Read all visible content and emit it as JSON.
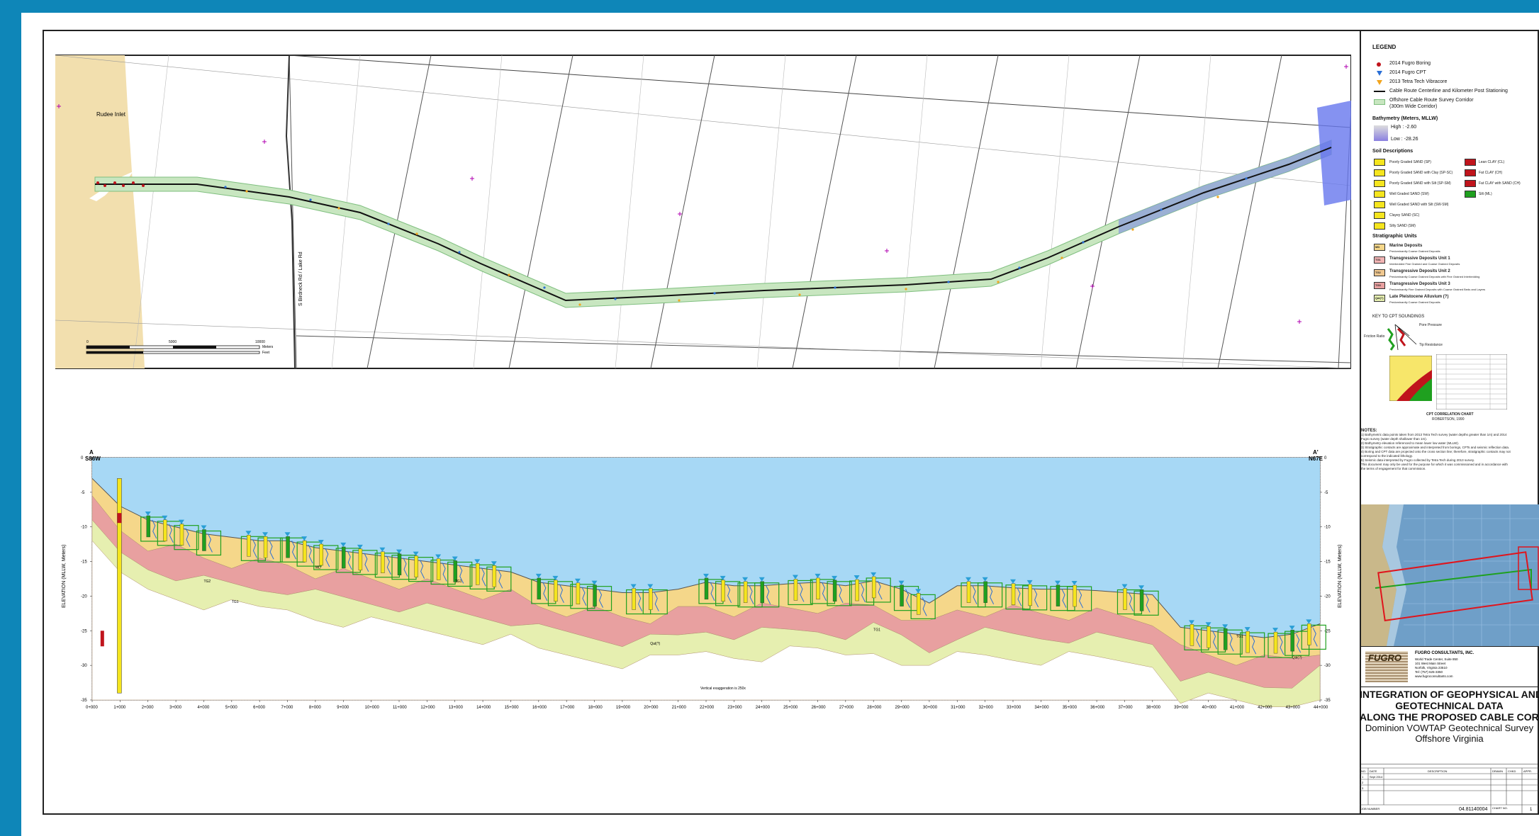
{
  "map": {
    "place_label": "Rudee Inlet",
    "road_label": "S Birdneck Rd / Lake Rd",
    "scale_label": "Meters",
    "scale_ticks": [
      "0",
      "5000",
      "10000"
    ],
    "scale_feet_label": "Feet"
  },
  "profile": {
    "left_end_label": "A",
    "left_end_dir": "S86W",
    "right_end_label": "A'",
    "right_end_dir": "N67E",
    "y_axis_label": "ELEVATION (MLLW, Meters)",
    "y_ticks": [
      "0",
      "-5",
      "-10",
      "-15",
      "-20",
      "-25",
      "-30",
      "-35"
    ],
    "x_ticks": [
      "0+000",
      "1+000",
      "2+000",
      "3+000",
      "4+000",
      "5+000",
      "6+000",
      "7+000",
      "8+000",
      "9+000",
      "10+000",
      "11+000",
      "12+000",
      "13+000",
      "14+000",
      "15+000",
      "16+000",
      "17+000",
      "18+000",
      "19+000",
      "20+000",
      "21+000",
      "22+000",
      "23+000",
      "24+000",
      "25+000",
      "26+000",
      "27+000",
      "28+000",
      "29+000",
      "30+000",
      "31+000",
      "32+000",
      "33+000",
      "34+000",
      "35+000",
      "36+000",
      "37+000",
      "38+000",
      "39+000",
      "40+000",
      "41+000",
      "42+000",
      "43+000",
      "44+000"
    ],
    "vertical_exaggeration": "Vertical exaggeration is 250x",
    "unit_labels": [
      "TG1",
      "TG2",
      "TG3",
      "Qal(?)",
      "MD"
    ],
    "colors": {
      "water": "#a7d8f5",
      "marine": "#f5d78a",
      "tg1": "#f2b4b4",
      "tg2": "#f0c890",
      "tg3": "#e8a0a0",
      "qal": "#e6efb0",
      "core_green": "#1fa01f",
      "boring_red": "#c0141c"
    }
  },
  "legend": {
    "title": "LEGEND",
    "symbols": [
      "2014 Fugro Boring",
      "2014 Fugro CPT",
      "2013 Tetra Tech Vibracore",
      "Cable Route Centerline and Kilometer Post Stationing",
      "Offshore Cable Route Survey Corridor",
      "(300m Wide Corridor)"
    ],
    "bathymetry_title": "Bathymetry (Meters, MLLW)",
    "bathymetry_high": "High : -2.60",
    "bathymetry_low": "Low : -28.26",
    "soil_title": "Soil Descriptions",
    "soil_left": [
      "Poorly Graded SAND (SP)",
      "Poorly Graded SAND with Clay (SP-SC)",
      "Poorly Graded SAND with Silt (SP-SM)",
      "Well Graded SAND (SW)",
      "Well Graded SAND with Silt (SW-SM)",
      "Clayey SAND (SC)",
      "Silty SAND (SM)"
    ],
    "soil_right": [
      "Lean CLAY (CL)",
      "Fat CLAY (CH)",
      "Fat CLAY with SAND (CH)",
      "Silt (ML)"
    ],
    "strat_title": "Stratigraphic Units",
    "strat_units": [
      {
        "code": "MD",
        "name": "Marine Deposits",
        "desc": "Predominantly Coarse Grained Deposits",
        "color": "#f5d78a"
      },
      {
        "code": "TG1",
        "name": "Transgressive Deposits Unit 1",
        "desc": "Interbedded Fine Grained and Coarse Grained Deposits",
        "color": "#f2b4b4"
      },
      {
        "code": "TG2",
        "name": "Transgressive Deposits Unit 2",
        "desc": "Predominantly Coarse Grained Deposits with Fine Grained Interbedding",
        "color": "#f0c890"
      },
      {
        "code": "TG3",
        "name": "Transgressive Deposits Unit 3",
        "desc": "Predominantly Fine Grained Deposits with Coarse Grained Beds and Layers",
        "color": "#e8a0a0"
      },
      {
        "code": "Qal(?)",
        "name": "Late Pleistocene Alluvium (?)",
        "desc": "Predominantly Coarse Grained Deposits",
        "color": "#e6efb0"
      }
    ],
    "cpt_key_title": "KEY TO CPT SOUNDINGS",
    "cpt_labels": [
      "Pore Pressure",
      "Friction Ratio",
      "Tip Resistance"
    ],
    "cpt_chart_caption": "CPT CORRELATION CHART",
    "cpt_chart_source": "ROBERTSON, 1990"
  },
  "notes": {
    "title": "NOTES:",
    "lines": [
      "1) Bathymetric data points taken from 2013 Tetra Tech survey (water depths greater than 1m) and 2014",
      "   Fugro survey (water depth shallower than 1m).",
      "2) Bathymetry elevation referenced to mean lower low water (MLLW).",
      "3) Stratigraphic contacts are approximate and interpreted from borings, CPTs and seismic reflection data.",
      "4) Boring and CPT data are projected onto the cross section line; therefore, stratigraphic contacts may not",
      "   correspond to the indicated lithology.",
      "5) Seismic data interpreted by Fugro collected by Tetra Tech during 2013 survey.",
      "This document may only be used for the purpose for which it was commissioned and in accordance with",
      "the terms of engagement for that commission."
    ]
  },
  "company": {
    "logo": "FUGRO",
    "name": "FUGRO CONSULTANTS, INC.",
    "address": [
      "World Trade Center, Suite 850",
      "101 West Main Street",
      "Norfolk, Virginia 23510",
      "Tel: (757) 625-3350",
      "www.fugroconsultants.com"
    ]
  },
  "title_block": {
    "line1": "INTEGRATION OF GEOPHYSICAL AND",
    "line2": "GEOTECHNICAL DATA",
    "line3": "ALONG THE PROPOSED CABLE CORRIDOR",
    "line4": "Dominion VOWTAP Geotechnical Survey",
    "line5": "Offshore Virginia"
  },
  "revision": {
    "headers": [
      "NO.",
      "DATE",
      "DESCRIPTION",
      "DRAWN",
      "CHKD",
      "APPR."
    ],
    "rows": [
      [
        "1",
        "Sept 2014",
        "",
        "",
        "",
        ""
      ],
      [
        "2",
        "",
        "",
        "",
        "",
        ""
      ],
      [
        "3",
        "",
        "",
        "",
        "",
        ""
      ]
    ],
    "job_label": "JOB NUMBER",
    "job_number": "04.81140004",
    "chart_label": "CHART NO.",
    "chart_number": "1"
  }
}
